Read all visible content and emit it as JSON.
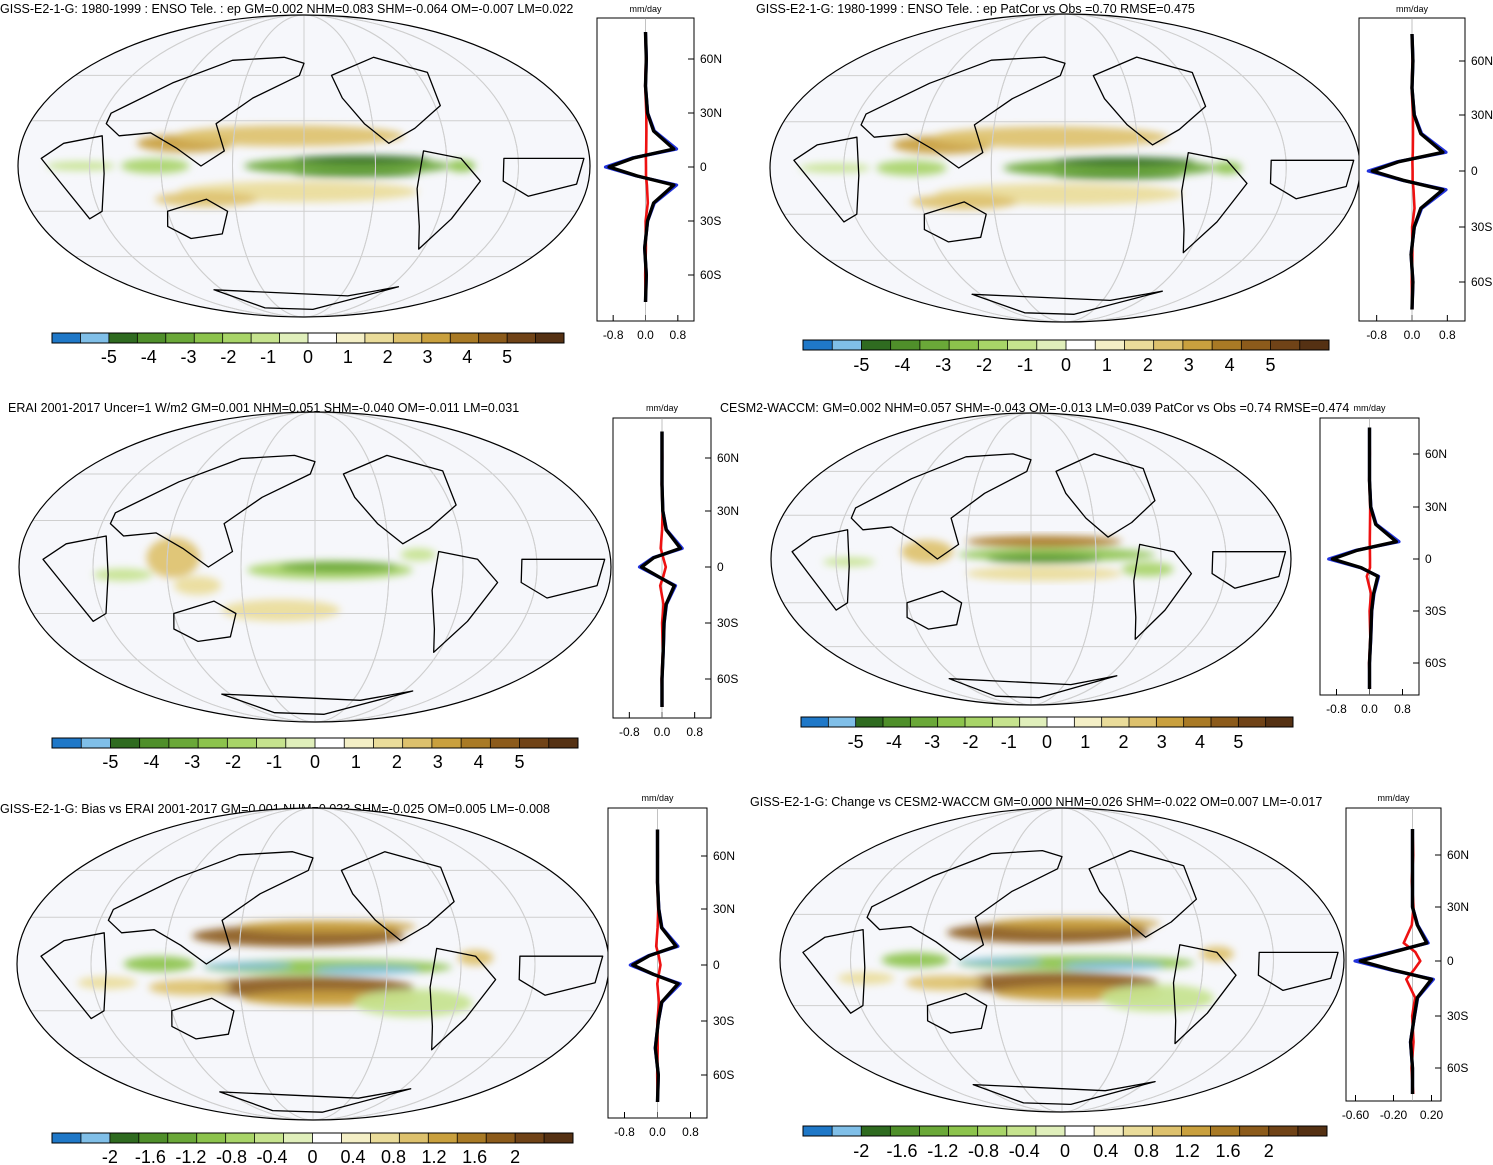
{
  "colors": {
    "ocean": "#f6f7fb",
    "land": "#ffffff",
    "coast": "#000000",
    "grid": "#cfcfcf",
    "model_line": "#000000",
    "zonal_blue": "#2233dd",
    "zonal_red": "#ee1111"
  },
  "colorbar_colors": [
    "#1f78c8",
    "#80bfe8",
    "#2f6b20",
    "#4f8f2a",
    "#6aa838",
    "#8cc34c",
    "#a8d468",
    "#c6e38e",
    "#e0efbb",
    "#ffffff",
    "#f4efc6",
    "#eadc9a",
    "#ddc16d",
    "#c9a03e",
    "#a97a25",
    "#8c5b1b",
    "#704317",
    "#553113"
  ],
  "panels": [
    {
      "title": "GISS-E2-1-G: 1980-1999 : ENSO Tele. : ep GM=0.002 NHM=0.083 SHM=-0.064 OM=-0.007 LM=0.022",
      "unit": "mm/day",
      "lat_labels": [
        "60N",
        "30N",
        "0",
        "30S",
        "60S"
      ],
      "x_ticks": [
        "-0.8",
        "0.0",
        "0.8"
      ],
      "colorbar_labels": [
        "-5",
        "-4",
        "-3",
        "-2",
        "-1",
        "0",
        "1",
        "2",
        "3",
        "4",
        "5"
      ],
      "pattern": "mean"
    },
    {
      "title": "GISS-E2-1-G: 1980-1999 : ENSO Tele. : ep PatCor vs Obs =0.70 RMSE=0.475",
      "unit": "mm/day",
      "lat_labels": [
        "60N",
        "30N",
        "0",
        "30S",
        "60S"
      ],
      "x_ticks": [
        "-0.8",
        "0.0",
        "0.8"
      ],
      "colorbar_labels": [
        "-5",
        "-4",
        "-3",
        "-2",
        "-1",
        "0",
        "1",
        "2",
        "3",
        "4",
        "5"
      ],
      "pattern": "mean"
    },
    {
      "title": "ERAI 2001-2017 Uncer=1 W/m2 GM=0.001 NHM=0.051 SHM=-0.040 OM=-0.011 LM=0.031",
      "unit": "mm/day",
      "lat_labels": [
        "60N",
        "30N",
        "0",
        "30S",
        "60S"
      ],
      "x_ticks": [
        "-0.8",
        "0.0",
        "0.8"
      ],
      "colorbar_labels": [
        "-5",
        "-4",
        "-3",
        "-2",
        "-1",
        "0",
        "1",
        "2",
        "3",
        "4",
        "5"
      ],
      "pattern": "obs"
    },
    {
      "title": "CESM2-WACCM: GM=0.002 NHM=0.057 SHM=-0.043 OM=-0.013 LM=0.039 PatCor vs Obs =0.74 RMSE=0.474",
      "unit": "mm/day",
      "lat_labels": [
        "60N",
        "30N",
        "0",
        "30S",
        "60S"
      ],
      "x_ticks": [
        "-0.8",
        "0.0",
        "0.8"
      ],
      "colorbar_labels": [
        "-5",
        "-4",
        "-3",
        "-2",
        "-1",
        "0",
        "1",
        "2",
        "3",
        "4",
        "5"
      ],
      "pattern": "cesm"
    },
    {
      "title": "GISS-E2-1-G: Bias vs ERAI 2001-2017 GM=0.001 NHM=0.033 SHM=-0.025 OM=0.005 LM=-0.008",
      "unit": "mm/day",
      "lat_labels": [
        "60N",
        "30N",
        "0",
        "30S",
        "60S"
      ],
      "x_ticks": [
        "-0.8",
        "0.0",
        "0.8"
      ],
      "colorbar_labels": [
        "-2",
        "-1.6",
        "-1.2",
        "-0.8",
        "-0.4",
        "0",
        "0.4",
        "0.8",
        "1.2",
        "1.6",
        "2"
      ],
      "pattern": "diff"
    },
    {
      "title": "GISS-E2-1-G: Change vs CESM2-WACCM GM=0.000 NHM=0.026 SHM=-0.022 OM=0.007 LM=-0.017",
      "unit": "mm/day",
      "lat_labels": [
        "60N",
        "30N",
        "0",
        "30S",
        "60S"
      ],
      "x_ticks": [
        "-0.60",
        "-0.20",
        "0.20"
      ],
      "colorbar_labels": [
        "-2",
        "-1.6",
        "-1.2",
        "-0.8",
        "-0.4",
        "0",
        "0.4",
        "0.8",
        "1.2",
        "1.6",
        "2"
      ],
      "pattern": "diff"
    }
  ],
  "chart_data": [
    {
      "type": "heatmap",
      "title": "GISS-E2-1-G: 1980-1999 : ENSO Tele. : ep GM=0.002 NHM=0.083 SHM=-0.064 OM=-0.007 LM=0.022",
      "colorbar": {
        "labels": [
          -5,
          -4,
          -3,
          -2,
          -1,
          0,
          1,
          2,
          3,
          4,
          5
        ],
        "range": [
          -5.5,
          5.5
        ]
      },
      "zonal_mean": {
        "unit": "mm/day",
        "xlim": [
          -1.2,
          1.2
        ],
        "lat": [
          -75,
          -60,
          -45,
          -30,
          -20,
          -10,
          -5,
          0,
          5,
          10,
          20,
          30,
          45,
          60,
          75
        ],
        "series": [
          {
            "name": "model",
            "values": [
              0.0,
              0.02,
              -0.02,
              0.05,
              0.2,
              0.7,
              -0.2,
              -0.9,
              -0.3,
              0.7,
              0.2,
              0.05,
              0.0,
              0.02,
              0.0
            ]
          }
        ]
      }
    },
    {
      "type": "heatmap",
      "title": "GISS-E2-1-G: 1980-1999 : ENSO Tele. : ep PatCor vs Obs =0.70 RMSE=0.475",
      "colorbar": {
        "labels": [
          -5,
          -4,
          -3,
          -2,
          -1,
          0,
          1,
          2,
          3,
          4,
          5
        ],
        "range": [
          -5.5,
          5.5
        ]
      },
      "zonal_mean": {
        "unit": "mm/day",
        "xlim": [
          -1.2,
          1.2
        ],
        "lat": [
          -75,
          -60,
          -45,
          -30,
          -20,
          -10,
          -5,
          0,
          5,
          10,
          20,
          30,
          45,
          60,
          75
        ],
        "series": [
          {
            "name": "model",
            "values": [
              0.0,
              0.02,
              -0.02,
              0.05,
              0.2,
              0.7,
              -0.2,
              -0.9,
              -0.3,
              0.7,
              0.2,
              0.05,
              0.0,
              0.02,
              0.0
            ]
          }
        ]
      }
    },
    {
      "type": "heatmap",
      "title": "ERAI 2001-2017 Uncer=1 W/m2 GM=0.001 NHM=0.051 SHM=-0.040 OM=-0.011 LM=0.031",
      "colorbar": {
        "labels": [
          -5,
          -4,
          -3,
          -2,
          -1,
          0,
          1,
          2,
          3,
          4,
          5
        ],
        "range": [
          -5.5,
          5.5
        ]
      },
      "zonal_mean": {
        "unit": "mm/day",
        "xlim": [
          -1.2,
          1.2
        ],
        "lat": [
          -75,
          -60,
          -45,
          -30,
          -20,
          -10,
          -5,
          0,
          5,
          10,
          20,
          30,
          45,
          60,
          75
        ],
        "series": [
          {
            "name": "obs",
            "values": [
              0.0,
              0.0,
              0.03,
              0.05,
              0.1,
              0.3,
              -0.1,
              -0.5,
              -0.2,
              0.45,
              0.1,
              0.02,
              0.0,
              0.0,
              0.0
            ]
          }
        ]
      }
    },
    {
      "type": "heatmap",
      "title": "CESM2-WACCM: GM=0.002 NHM=0.057 SHM=-0.043 OM=-0.013 LM=0.039 PatCor vs Obs =0.74 RMSE=0.474",
      "colorbar": {
        "labels": [
          -5,
          -4,
          -3,
          -2,
          -1,
          0,
          1,
          2,
          3,
          4,
          5
        ],
        "range": [
          -5.5,
          5.5
        ]
      },
      "zonal_mean": {
        "unit": "mm/day",
        "xlim": [
          -1.2,
          1.2
        ],
        "lat": [
          -75,
          -60,
          -45,
          -30,
          -20,
          -10,
          -5,
          0,
          5,
          10,
          20,
          30,
          45,
          60,
          75
        ],
        "series": [
          {
            "name": "model",
            "values": [
              0.0,
              0.0,
              0.03,
              0.05,
              0.1,
              0.2,
              -0.2,
              -0.9,
              -0.3,
              0.65,
              0.15,
              0.03,
              0.0,
              0.0,
              0.0
            ]
          }
        ]
      }
    },
    {
      "type": "heatmap",
      "title": "GISS-E2-1-G: Bias vs ERAI 2001-2017 GM=0.001 NHM=0.033 SHM=-0.025 OM=0.005 LM=-0.008",
      "colorbar": {
        "labels": [
          -2,
          -1.6,
          -1.2,
          -0.8,
          -0.4,
          0,
          0.4,
          0.8,
          1.2,
          1.6,
          2
        ],
        "range": [
          -2.2,
          2.2
        ]
      },
      "zonal_mean": {
        "unit": "mm/day",
        "xlim": [
          -1.2,
          1.2
        ],
        "lat": [
          -75,
          -60,
          -45,
          -30,
          -20,
          -10,
          -5,
          0,
          5,
          10,
          20,
          30,
          45,
          60,
          75
        ],
        "series": [
          {
            "name": "model",
            "values": [
              0.0,
              0.02,
              -0.05,
              0.02,
              0.1,
              0.5,
              -0.1,
              -0.6,
              -0.2,
              0.45,
              0.1,
              0.03,
              0.0,
              0.0,
              0.0
            ]
          }
        ]
      }
    },
    {
      "type": "heatmap",
      "title": "GISS-E2-1-G: Change vs CESM2-WACCM GM=0.000 NHM=0.026 SHM=-0.022 OM=0.007 LM=-0.017",
      "colorbar": {
        "labels": [
          -2,
          -1.6,
          -1.2,
          -0.8,
          -0.4,
          0,
          0.4,
          0.8,
          1.2,
          1.6,
          2
        ],
        "range": [
          -2.2,
          2.2
        ]
      },
      "zonal_mean": {
        "unit": "mm/day",
        "xlim": [
          -0.7,
          0.3
        ],
        "lat": [
          -75,
          -60,
          -45,
          -30,
          -20,
          -10,
          -5,
          0,
          5,
          10,
          20,
          30,
          45,
          60,
          75
        ],
        "series": [
          {
            "name": "model",
            "values": [
              0.0,
              0.0,
              -0.02,
              0.02,
              0.05,
              0.2,
              -0.2,
              -0.55,
              -0.2,
              0.15,
              0.05,
              0.0,
              0.0,
              0.0,
              0.0
            ]
          }
        ]
      }
    }
  ]
}
